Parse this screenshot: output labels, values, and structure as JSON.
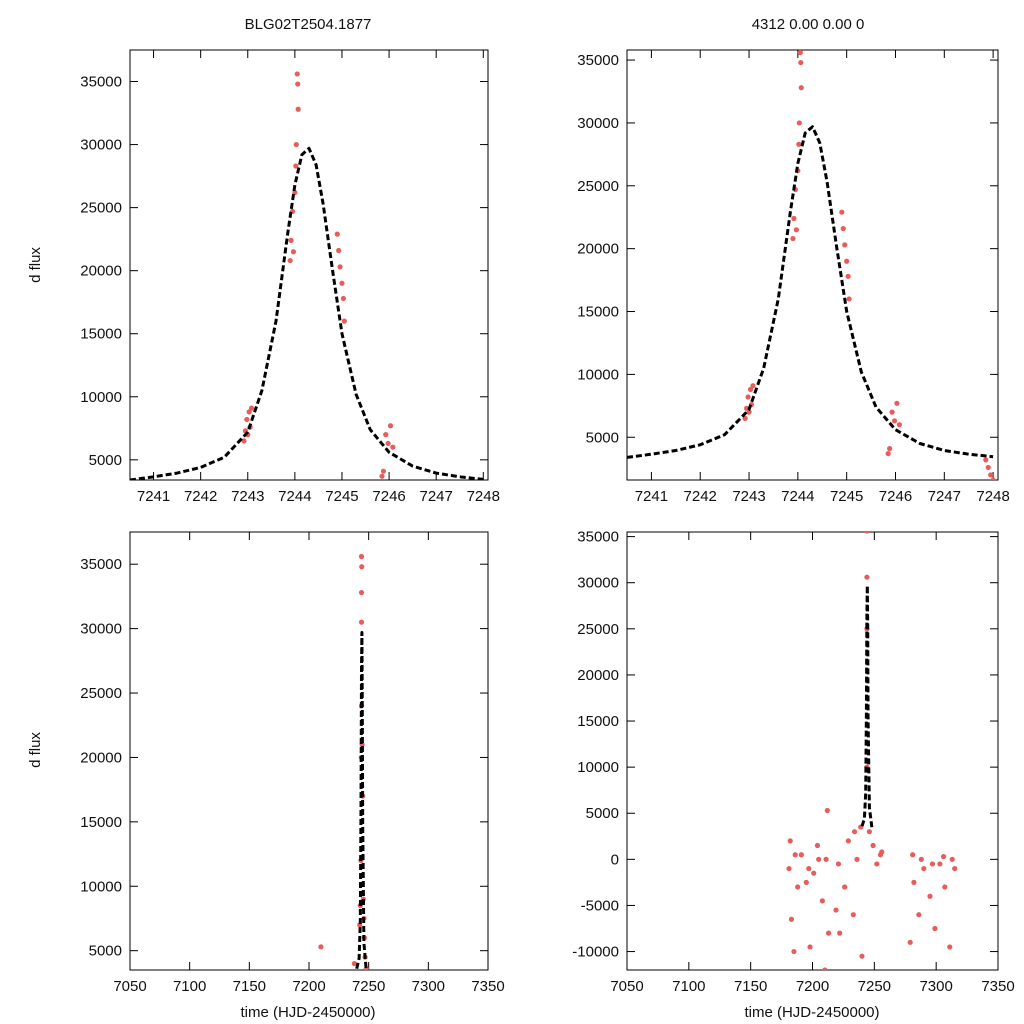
{
  "figure": {
    "title_left": "BLG02T2504.1877",
    "title_right": "4312  0.00  0.00  0",
    "ylabel": "d flux",
    "xlabel": "time (HJD-2450000)"
  },
  "colors": {
    "data_points": "#e85c5c",
    "model_curve": "#000000",
    "axes": "#000000"
  },
  "chart_data": [
    {
      "id": "top-left",
      "type": "scatter",
      "series": [
        {
          "name": "observations",
          "x": [
            7242.92,
            7242.95,
            7242.98,
            7243.0,
            7243.03,
            7243.05,
            7243.08,
            7243.9,
            7243.92,
            7243.95,
            7243.97,
            7244.0,
            7244.02,
            7244.03,
            7244.05,
            7244.06,
            7244.07,
            7244.9,
            7244.93,
            7244.96,
            7245.0,
            7245.03,
            7245.05,
            7245.85,
            7245.88,
            7245.93,
            7245.98,
            7246.03,
            7246.08
          ],
          "y": [
            6500,
            7300,
            8200,
            7000,
            8800,
            7600,
            9100,
            20800,
            22400,
            24700,
            21500,
            26200,
            28300,
            30000,
            35600,
            34800,
            32800,
            22900,
            21600,
            20300,
            19000,
            17800,
            16000,
            3700,
            4100,
            7000,
            6300,
            7700,
            6000
          ]
        },
        {
          "name": "model",
          "x": [
            7240.5,
            7241.0,
            7241.5,
            7242.0,
            7242.5,
            7243.0,
            7243.3,
            7243.6,
            7243.85,
            7244.0,
            7244.15,
            7244.3,
            7244.45,
            7244.6,
            7244.8,
            7245.0,
            7245.3,
            7245.6,
            7246.0,
            7246.5,
            7247.0,
            7247.5,
            7248.0
          ],
          "y": [
            3400,
            3650,
            3950,
            4400,
            5200,
            7200,
            10500,
            16000,
            23000,
            26800,
            29200,
            29700,
            28400,
            25300,
            20000,
            15000,
            10200,
            7400,
            5600,
            4500,
            3950,
            3650,
            3450
          ]
        }
      ],
      "xlim": [
        7240.5,
        7248.1
      ],
      "ylim": [
        3400,
        37500
      ],
      "xticks": [
        7241,
        7242,
        7243,
        7244,
        7245,
        7246,
        7247,
        7248
      ],
      "yticks": [
        5000,
        10000,
        15000,
        20000,
        25000,
        30000,
        35000
      ],
      "xtick_labels": [
        "7241",
        "7242",
        "7243",
        "7244",
        "7245",
        "7246",
        "7247",
        "7248"
      ],
      "ytick_labels": [
        "5000",
        "10000",
        "15000",
        "20000",
        "25000",
        "30000",
        "35000"
      ],
      "title": "BLG02T2504.1877",
      "xlabel": "",
      "ylabel": "d flux"
    },
    {
      "id": "top-right",
      "type": "scatter",
      "series": [
        {
          "name": "observations",
          "x": [
            7242.92,
            7242.95,
            7242.98,
            7243.0,
            7243.03,
            7243.05,
            7243.08,
            7243.9,
            7243.92,
            7243.95,
            7243.97,
            7244.0,
            7244.02,
            7244.03,
            7244.05,
            7244.06,
            7244.07,
            7244.9,
            7244.93,
            7244.96,
            7245.0,
            7245.03,
            7245.05,
            7245.85,
            7245.88,
            7245.93,
            7245.98,
            7246.03,
            7246.08,
            7247.85,
            7247.9,
            7247.95,
            7248.0
          ],
          "y": [
            6500,
            7300,
            8200,
            7000,
            8800,
            7600,
            9100,
            20800,
            22400,
            24700,
            21500,
            26200,
            28300,
            30000,
            35600,
            34800,
            32800,
            22900,
            21600,
            20300,
            19000,
            17800,
            16000,
            3700,
            4100,
            7000,
            6300,
            7700,
            6000,
            3200,
            2600,
            2000,
            1600
          ]
        },
        {
          "name": "model",
          "x": [
            7240.5,
            7241.0,
            7241.5,
            7242.0,
            7242.5,
            7243.0,
            7243.3,
            7243.6,
            7243.85,
            7244.0,
            7244.15,
            7244.3,
            7244.45,
            7244.6,
            7244.8,
            7245.0,
            7245.3,
            7245.6,
            7246.0,
            7246.5,
            7247.0,
            7247.5,
            7248.0
          ],
          "y": [
            3400,
            3650,
            3950,
            4400,
            5200,
            7200,
            10500,
            16000,
            23000,
            26800,
            29200,
            29700,
            28400,
            25300,
            20000,
            15000,
            10200,
            7400,
            5600,
            4500,
            3950,
            3650,
            3450
          ]
        }
      ],
      "xlim": [
        7240.5,
        7248.1
      ],
      "ylim": [
        1600,
        35800
      ],
      "xticks": [
        7241,
        7242,
        7243,
        7244,
        7245,
        7246,
        7247,
        7248
      ],
      "yticks": [
        5000,
        10000,
        15000,
        20000,
        25000,
        30000,
        35000
      ],
      "xtick_labels": [
        "7241",
        "7242",
        "7243",
        "7244",
        "7245",
        "7246",
        "7247",
        "7248"
      ],
      "ytick_labels": [
        "5000",
        "10000",
        "15000",
        "20000",
        "25000",
        "30000",
        "35000"
      ],
      "title": "4312  0.00  0.00  0",
      "xlabel": "",
      "ylabel": ""
    },
    {
      "id": "bottom-left",
      "type": "scatter",
      "series": [
        {
          "name": "observations",
          "x": [
            7210,
            7238,
            7242.5,
            7243,
            7243.5,
            7243.8,
            7244,
            7244,
            7244,
            7244,
            7244.2,
            7244.5,
            7245,
            7245.5,
            7246,
            7246.5,
            7247,
            7248
          ],
          "y": [
            5300,
            4000,
            7000,
            8500,
            12000,
            20000,
            24000,
            30500,
            32800,
            35600,
            34800,
            21000,
            17000,
            9000,
            7500,
            6000,
            4500,
            3600
          ]
        },
        {
          "name": "model",
          "x": [
            7240,
            7242,
            7243,
            7243.6,
            7244,
            7244.3,
            7244.6,
            7245,
            7246,
            7248
          ],
          "y": [
            3600,
            4400,
            7200,
            16000,
            26800,
            29700,
            25300,
            15000,
            5600,
            3450
          ]
        }
      ],
      "xlim": [
        7050,
        7350
      ],
      "ylim": [
        3500,
        37500
      ],
      "xticks": [
        7050,
        7100,
        7150,
        7200,
        7250,
        7300,
        7350
      ],
      "yticks": [
        5000,
        10000,
        15000,
        20000,
        25000,
        30000,
        35000
      ],
      "xtick_labels": [
        "7050",
        "7100",
        "7150",
        "7200",
        "7250",
        "7300",
        "7350"
      ],
      "ytick_labels": [
        "5000",
        "10000",
        "15000",
        "20000",
        "25000",
        "30000",
        "35000"
      ],
      "title": "",
      "xlabel": "time (HJD-2450000)",
      "ylabel": "d flux"
    },
    {
      "id": "bottom-right",
      "type": "scatter",
      "series": [
        {
          "name": "observations",
          "x": [
            7181,
            7183,
            7185,
            7188,
            7191,
            7195,
            7198,
            7201,
            7205,
            7208,
            7212,
            7219,
            7222,
            7226,
            7229,
            7233,
            7236,
            7240,
            7244,
            7244,
            7244,
            7244,
            7246,
            7249,
            7252,
            7255,
            7279,
            7282,
            7286,
            7290,
            7295,
            7299,
            7303,
            7307,
            7311,
            7315,
            7182,
            7186,
            7197,
            7204,
            7211,
            7221,
            7234,
            7239,
            7256,
            7281,
            7288,
            7297,
            7306,
            7313,
            7210,
            7213
          ],
          "y": [
            -1000,
            -6500,
            -10000,
            -3000,
            500,
            -2500,
            -9500,
            -1500,
            0,
            -4500,
            5300,
            -5500,
            -8000,
            -3000,
            2000,
            -6000,
            0,
            -10500,
            10000,
            25000,
            30600,
            35600,
            3000,
            1500,
            -500,
            500,
            -9000,
            -2500,
            -6000,
            -1000,
            -4000,
            -7500,
            -500,
            -3000,
            -9500,
            -1000,
            2000,
            500,
            -1000,
            1500,
            0,
            -500,
            3000,
            3500,
            800,
            500,
            0,
            -500,
            300,
            0,
            -12000,
            -8000
          ]
        },
        {
          "name": "model",
          "x": [
            7240,
            7242,
            7243,
            7243.6,
            7244,
            7244.3,
            7244.6,
            7245,
            7246,
            7248
          ],
          "y": [
            3600,
            4400,
            7200,
            16000,
            26800,
            29700,
            25300,
            15000,
            5600,
            3450
          ]
        }
      ],
      "xlim": [
        7050,
        7350
      ],
      "ylim": [
        -12000,
        35500
      ],
      "xticks": [
        7050,
        7100,
        7150,
        7200,
        7250,
        7300,
        7350
      ],
      "yticks": [
        -10000,
        -5000,
        0,
        5000,
        10000,
        15000,
        20000,
        25000,
        30000,
        35000
      ],
      "xtick_labels": [
        "7050",
        "7100",
        "7150",
        "7200",
        "7250",
        "7300",
        "7350"
      ],
      "ytick_labels": [
        "-10000",
        "-5000",
        "0",
        "5000",
        "10000",
        "15000",
        "20000",
        "25000",
        "30000",
        "35000"
      ],
      "title": "",
      "xlabel": "time (HJD-2450000)",
      "ylabel": ""
    }
  ]
}
